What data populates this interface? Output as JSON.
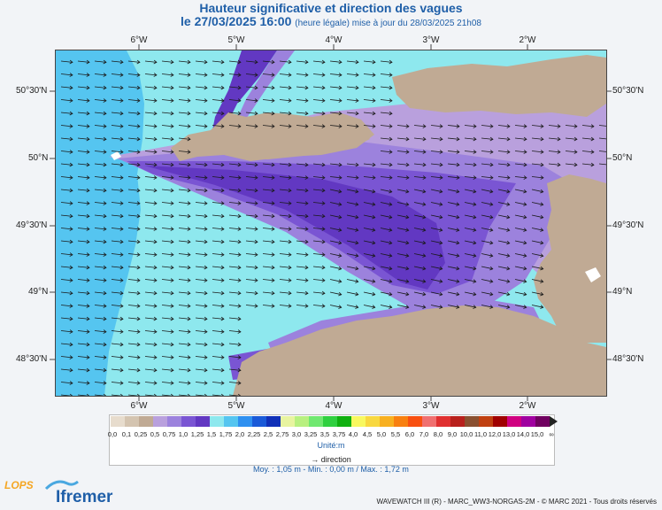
{
  "title": "Hauteur significative et direction des vagues",
  "subtitle_date": "le 27/03/2025 16:00",
  "subtitle_note": "(heure légale) mise à jour du 28/03/2025 21h08",
  "axes": {
    "lon_labels": [
      "6°W",
      "5°W",
      "4°W",
      "3°W",
      "2°W"
    ],
    "lat_labels": [
      "50°30'N",
      "50°N",
      "49°30'N",
      "49°N",
      "48°30'N"
    ]
  },
  "legend": {
    "values": [
      "0,0",
      "0,1",
      "0,25",
      "0,5",
      "0,75",
      "1,0",
      "1,25",
      "1,5",
      "1,75",
      "2,0",
      "2,25",
      "2,5",
      "2,75",
      "3,0",
      "3,25",
      "3,5",
      "3,75",
      "4,0",
      "4,5",
      "5,0",
      "5,5",
      "6,0",
      "7,0",
      "8,0",
      "9,0",
      "10,0",
      "11,0",
      "12,0",
      "13,0",
      "14,0",
      "15,0",
      "∞"
    ],
    "colors": [
      "#e7dccd",
      "#d4c4b0",
      "#c0aa94",
      "#b9a0dd",
      "#9c82dd",
      "#7a55d3",
      "#6238c2",
      "#8ee8ee",
      "#55c5f0",
      "#2f90f0",
      "#1a5ad8",
      "#1030b8",
      "#e8f4a0",
      "#b8f080",
      "#70e870",
      "#30d040",
      "#10b010",
      "#f8f860",
      "#f8d840",
      "#f8b020",
      "#f88010",
      "#f85010",
      "#f07070",
      "#e03030",
      "#b8201c",
      "#8a5030",
      "#c04010",
      "#a00000",
      "#d00080",
      "#a000a0",
      "#700060"
    ],
    "unit": "Unité:m",
    "direction_label": "direction"
  },
  "stats": "Moy. : 1,05 m   -   Min. : 0,00 m / Max. : 1,72 m",
  "footer": "WAVEWATCH III (R) - MARC_WW3-NORGAS-2M - © MARC 2021 - Tous droits réservés",
  "logos": {
    "lops": "LOPS",
    "ifremer": "Ifremer"
  }
}
